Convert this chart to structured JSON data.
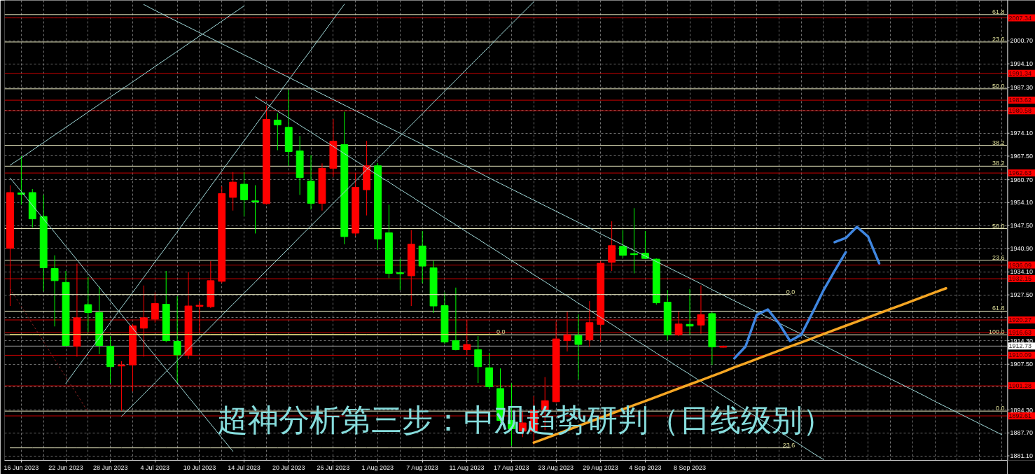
{
  "chart_data": {
    "type": "candlestick",
    "title": "超神分析第三步：中观趋势研判（日线级别）",
    "categories": [
      null,
      "16 Jun 2023",
      null,
      null,
      null,
      "22 Jun 2023",
      null,
      null,
      null,
      "28 Jun 2023",
      null,
      null,
      null,
      "4 Jul 2023",
      null,
      null,
      null,
      "10 Jul 2023",
      null,
      null,
      null,
      "14 Jul 2023",
      null,
      null,
      null,
      "20 Jul 2023",
      null,
      null,
      null,
      "26 Jul 2023",
      null,
      null,
      null,
      "1 Aug 2023",
      null,
      null,
      null,
      "7 Aug 2023",
      null,
      null,
      null,
      "11 Aug 2023",
      null,
      null,
      null,
      "17 Aug 2023",
      null,
      null,
      null,
      "23 Aug 2023",
      null,
      null,
      null,
      "29 Aug 2023",
      null,
      null,
      null,
      "4 Sep 2023",
      null,
      null,
      null,
      "8 Sep 2023",
      null,
      null,
      null,
      null,
      null,
      null,
      null,
      null,
      null,
      null,
      null,
      null,
      null,
      null,
      null,
      null,
      null,
      null,
      null,
      null,
      null,
      null,
      null,
      null,
      null,
      null,
      null,
      null
    ],
    "ohlc": [
      [
        1940.9,
        1959.1,
        1924.3,
        1957.0
      ],
      [
        1956.9,
        1967.5,
        1953.5,
        1956.5
      ],
      [
        1957.0,
        1958.0,
        1946.9,
        1949.4
      ],
      [
        1950.1,
        1956.3,
        1928.5,
        1935.3
      ],
      [
        1935.1,
        1938.9,
        1918.4,
        1931.6
      ],
      [
        1931.1,
        1934.4,
        1912.6,
        1912.9
      ],
      [
        1912.7,
        1936.5,
        1909.7,
        1920.9
      ],
      [
        1924.7,
        1932.7,
        1916.7,
        1922.4
      ],
      [
        1922.4,
        1929.9,
        1910.4,
        1912.9
      ],
      [
        1912.7,
        1915.6,
        1902.1,
        1906.8
      ],
      [
        1907.0,
        1908.4,
        1894.1,
        1907.3
      ],
      [
        1907.3,
        1919.1,
        1899.7,
        1918.6
      ],
      [
        1917.9,
        1930.2,
        1909.7,
        1920.9
      ],
      [
        1920.5,
        1928.2,
        1919.5,
        1925.0
      ],
      [
        1924.8,
        1934.4,
        1913.9,
        1914.3
      ],
      [
        1914.1,
        1927.1,
        1902.1,
        1910.2
      ],
      [
        1910.1,
        1934.1,
        1909.0,
        1924.3
      ],
      [
        1924.2,
        1925.7,
        1916.7,
        1924.5
      ],
      [
        1924.1,
        1937.2,
        1923.7,
        1931.6
      ],
      [
        1931.4,
        1958.8,
        1930.9,
        1956.7
      ],
      [
        1955.6,
        1962.9,
        1951.8,
        1960.0
      ],
      [
        1959.4,
        1962.9,
        1950.1,
        1954.9
      ],
      [
        1954.6,
        1959.1,
        1945.2,
        1954.3
      ],
      [
        1953.8,
        1982.0,
        1953.5,
        1978.1
      ],
      [
        1977.9,
        1979.9,
        1969.2,
        1976.5
      ],
      [
        1975.8,
        1986.6,
        1964.7,
        1968.8
      ],
      [
        1969.0,
        1973.3,
        1956.3,
        1961.3
      ],
      [
        1960.3,
        1967.8,
        1952.1,
        1953.9
      ],
      [
        1953.9,
        1965.4,
        1951.8,
        1964.0
      ],
      [
        1964.0,
        1978.2,
        1961.5,
        1971.8
      ],
      [
        1970.8,
        1980.3,
        1942.1,
        1944.3
      ],
      [
        1945.3,
        1962.6,
        1944.5,
        1958.5
      ],
      [
        1957.8,
        1971.9,
        1950.4,
        1964.7
      ],
      [
        1964.7,
        1965.5,
        1940.5,
        1943.6
      ],
      [
        1945.4,
        1953.5,
        1932.3,
        1933.7
      ],
      [
        1933.9,
        1937.9,
        1928.9,
        1933.6
      ],
      [
        1933.0,
        1946.2,
        1924.3,
        1942.1
      ],
      [
        1941.6,
        1945.9,
        1930.9,
        1935.8
      ],
      [
        1935.3,
        1937.3,
        1922.3,
        1924.3
      ],
      [
        1924.4,
        1928.2,
        1913.4,
        1913.9
      ],
      [
        1914.3,
        1929.6,
        1911.5,
        1911.7
      ],
      [
        1911.7,
        1920.2,
        1910.1,
        1913.2
      ],
      [
        1911.7,
        1915.6,
        1902.1,
        1906.8
      ],
      [
        1906.5,
        1910.8,
        1900.3,
        1901.0
      ],
      [
        1900.5,
        1906.3,
        1890.6,
        1891.3
      ],
      [
        1891.3,
        1902.0,
        1884.0,
        1888.9
      ],
      [
        1888.2,
        1893.8,
        1886.5,
        1890.6
      ],
      [
        1888.2,
        1898.3,
        1884.3,
        1894.2
      ],
      [
        1894.4,
        1903.8,
        1888.5,
        1897.0
      ],
      [
        1896.7,
        1919.8,
        1896.5,
        1914.8
      ],
      [
        1914.3,
        1922.6,
        1911.2,
        1916.0
      ],
      [
        1915.8,
        1921.9,
        1903.1,
        1913.2
      ],
      [
        1914.5,
        1925.7,
        1912.5,
        1919.5
      ],
      [
        1919.0,
        1937.3,
        1913.9,
        1936.6
      ],
      [
        1936.9,
        1948.7,
        1934.4,
        1941.7
      ],
      [
        1941.5,
        1946.2,
        1938.2,
        1938.9
      ],
      [
        1939.4,
        1952.5,
        1933.7,
        1939.1
      ],
      [
        1939.5,
        1945.9,
        1937.8,
        1938.0
      ],
      [
        1937.8,
        1938.0,
        1924.7,
        1925.2
      ],
      [
        1925.4,
        1928.9,
        1914.3,
        1916.0
      ],
      [
        1916.0,
        1922.6,
        1915.6,
        1919.1
      ],
      [
        1919.0,
        1929.2,
        1916.0,
        1918.5
      ],
      [
        1918.8,
        1930.2,
        1916.3,
        1921.8
      ],
      [
        1922.1,
        1922.6,
        1907.3,
        1912.5
      ],
      [
        1912.4,
        1912.9,
        1912.3,
        1912.7
      ],
      null,
      null,
      null,
      null,
      null,
      null,
      null,
      null,
      null,
      null,
      null,
      null,
      null,
      null,
      null,
      null,
      null,
      null,
      null,
      null,
      null,
      null,
      null,
      null,
      null
    ],
    "colors": [
      "#ff0000",
      "#00ff00",
      "#00ff00",
      "#00ff00",
      "#00ff00",
      "#00ff00",
      "#ff0000",
      "#00ff00",
      "#00ff00",
      "#00ff00",
      "#ff0000",
      "#ff0000",
      "#ff0000",
      "#ff0000",
      "#00ff00",
      "#00ff00",
      "#ff0000",
      "#ff0000",
      "#ff0000",
      "#ff0000",
      "#ff0000",
      "#00ff00",
      "#00ff00",
      "#ff0000",
      "#00ff00",
      "#00ff00",
      "#00ff00",
      "#00ff00",
      "#ff0000",
      "#ff0000",
      "#00ff00",
      "#ff0000",
      "#ff0000",
      "#00ff00",
      "#00ff00",
      "#00ff00",
      "#ff0000",
      "#00ff00",
      "#00ff00",
      "#00ff00",
      "#00ff00",
      "#ff0000",
      "#00ff00",
      "#00ff00",
      "#00ff00",
      "#00ff00",
      "#ff0000",
      "#ff0000",
      "#ff0000",
      "#ff0000",
      "#ff0000",
      "#00ff00",
      "#ff0000",
      "#ff0000",
      "#ff0000",
      "#00ff00",
      "#00ff00",
      "#00ff00",
      "#00ff00",
      "#00ff00",
      "#ff0000",
      "#00ff00",
      "#ff0000",
      "#00ff00",
      "#ff0000",
      null,
      null,
      null,
      null,
      null,
      null,
      null,
      null,
      null,
      null,
      null,
      null,
      null,
      null,
      null,
      null,
      null,
      null,
      null,
      null,
      null,
      null,
      null,
      null,
      null
    ],
    "series": [
      {
        "type": "line",
        "color": "#a0d8d8",
        "values": [
          1964.9,
          1967.0,
          1969.2,
          1971.4,
          1973.6,
          1975.8,
          1978.0,
          1980.2,
          1982.4,
          1984.6,
          1986.7,
          1988.9,
          1991.1,
          1993.3,
          1995.5,
          1997.7,
          1999.9,
          2002.1,
          2004.2,
          2006.4,
          2008.6,
          2010.8,
          null,
          null,
          null,
          null,
          null,
          null,
          null,
          null,
          null,
          null,
          null,
          null,
          null,
          null,
          null,
          null,
          null,
          null,
          null,
          null,
          null,
          null,
          null,
          null,
          null,
          null,
          null,
          null,
          null,
          null,
          null,
          null,
          null,
          null,
          null,
          null,
          null,
          null,
          null,
          null,
          null,
          null,
          null,
          null,
          null,
          null,
          null,
          null,
          null,
          null,
          null,
          null,
          null,
          null,
          null,
          null,
          null,
          null,
          null,
          null,
          null,
          null,
          null,
          null,
          null,
          null,
          null,
          null
        ]
      },
      {
        "type": "line",
        "color": "#a0d8d8",
        "values": [
          1961.2,
          1957.3,
          1953.3,
          1949.4,
          1945.5,
          1941.5,
          1937.6,
          1933.6,
          1929.7,
          1925.7,
          1921.8,
          1917.9,
          1913.9,
          1910.0,
          1906.0,
          1902.1,
          1898.1,
          1894.2,
          1890.3,
          1886.3,
          1882.4,
          null,
          null,
          null,
          null,
          null,
          null,
          null,
          null,
          null,
          null,
          null,
          null,
          null,
          null,
          null,
          null,
          null,
          null,
          null,
          null,
          null,
          null,
          null,
          null,
          null,
          null,
          null,
          null,
          null,
          null,
          null,
          null,
          null,
          null,
          null,
          null,
          null,
          null,
          null,
          null,
          null,
          null,
          null,
          null,
          null,
          null,
          null,
          null,
          null,
          null,
          null,
          null,
          null,
          null,
          null,
          null,
          null,
          null,
          null,
          null,
          null,
          null,
          null,
          null,
          null,
          null,
          null,
          null,
          null
        ]
      },
      {
        "type": "line",
        "color": "#a0d8d8",
        "values": [
          null,
          null,
          null,
          null,
          null,
          1902.0,
          1906.4,
          1910.7,
          1915.1,
          1919.5,
          1923.9,
          1928.2,
          1932.6,
          1937.0,
          1941.3,
          1945.7,
          1950.1,
          1954.4,
          1958.8,
          1963.2,
          1967.6,
          1971.9,
          1976.3,
          1980.7,
          1985.0,
          1989.4,
          1993.8,
          1998.1,
          2002.5,
          2006.9,
          2011.3,
          null,
          null,
          null,
          null,
          null,
          null,
          null,
          null,
          null,
          null,
          null,
          null,
          null,
          null,
          null,
          null,
          null,
          null,
          null,
          null,
          null,
          null,
          null,
          null,
          null,
          null,
          null,
          null,
          null,
          null,
          null,
          null,
          null,
          null,
          null,
          null,
          null,
          null,
          null,
          null,
          null,
          null,
          null,
          null,
          null,
          null,
          null,
          null,
          null,
          null,
          null,
          null,
          null,
          null,
          null,
          null,
          null,
          null,
          null
        ]
      },
      {
        "type": "line",
        "color": "#a0d8d8",
        "values": [
          null,
          null,
          null,
          null,
          null,
          null,
          null,
          null,
          null,
          null,
          1892.5,
          1895.7,
          1898.9,
          1902.2,
          1905.4,
          1908.6,
          1911.9,
          1915.1,
          1918.3,
          1921.6,
          1924.8,
          1928.0,
          1931.2,
          1934.5,
          1937.7,
          1940.9,
          1944.2,
          1947.4,
          1950.6,
          1953.9,
          1957.1,
          1960.3,
          1963.6,
          1966.8,
          1970.0,
          1973.3,
          1976.5,
          1979.7,
          1983.0,
          1986.2,
          1989.4,
          1992.7,
          1995.9,
          1999.1,
          2002.4,
          2005.6,
          2008.8,
          2012.0,
          null,
          null,
          null,
          null,
          null,
          null,
          null,
          null,
          null,
          null,
          null,
          null,
          null,
          null,
          null,
          null,
          null,
          null,
          null,
          null,
          null,
          null,
          null,
          null,
          null,
          null,
          null,
          null,
          null,
          null,
          null,
          null,
          null,
          null,
          null,
          null,
          null,
          null,
          null,
          null,
          null,
          null
        ]
      },
      {
        "type": "line",
        "color": "#a0d8d8",
        "values": [
          null,
          null,
          null,
          null,
          null,
          null,
          null,
          null,
          null,
          null,
          null,
          null,
          null,
          null,
          null,
          null,
          null,
          null,
          null,
          null,
          null,
          null,
          1984.6,
          1982.6,
          1980.5,
          1978.5,
          1976.4,
          1974.4,
          1972.3,
          1970.3,
          1968.2,
          1966.2,
          1964.1,
          1962.0,
          1960.0,
          1957.9,
          1955.9,
          1953.8,
          1951.8,
          1949.7,
          1947.7,
          1945.6,
          1943.6,
          1941.5,
          1939.5,
          1937.4,
          1935.4,
          1933.3,
          1931.3,
          1929.2,
          1927.2,
          1925.1,
          1923.1,
          1921.0,
          1919.0,
          1916.9,
          1914.8,
          1912.8,
          1910.7,
          1908.7,
          1906.6,
          1904.6,
          1902.5,
          1900.5,
          1898.4,
          1896.4,
          1894.3,
          1892.3,
          1890.2,
          1888.2,
          1886.1,
          1884.1,
          1882.0,
          1880.0,
          null,
          null,
          null,
          null,
          null,
          null,
          null,
          null,
          null,
          null,
          null,
          null,
          null,
          null,
          null,
          null
        ]
      },
      {
        "type": "line",
        "color": "#a0d8d8",
        "values": [
          null,
          null,
          null,
          null,
          null,
          null,
          null,
          null,
          null,
          null,
          null,
          null,
          2011.2,
          2009.5,
          2007.9,
          2006.3,
          2004.7,
          2003.1,
          2001.5,
          1999.9,
          1998.3,
          1996.7,
          1995.1,
          1993.4,
          1991.8,
          1990.2,
          1988.6,
          1987.0,
          1985.4,
          1983.8,
          1982.2,
          1980.6,
          1979.0,
          1977.3,
          1975.7,
          1974.1,
          1972.5,
          1970.9,
          1969.3,
          1967.7,
          1966.1,
          1964.5,
          1962.9,
          1961.2,
          1959.6,
          1958.0,
          1956.4,
          1954.8,
          1953.2,
          1951.6,
          1950.0,
          1948.4,
          1946.8,
          1945.1,
          1943.5,
          1941.9,
          1940.3,
          1938.7,
          1937.1,
          1935.5,
          1933.9,
          1932.3,
          1930.7,
          1929.0,
          1927.4,
          1925.8,
          1924.2,
          1922.6,
          1921.0,
          1919.4,
          1917.8,
          1916.2,
          1914.5,
          1912.9,
          1911.3,
          1909.7,
          1908.1,
          1906.5,
          1904.9,
          1903.3,
          1901.7,
          1900.1,
          1898.5,
          1896.8,
          1895.2,
          1893.6,
          1892.0,
          1890.4,
          1888.8,
          1887.2
        ]
      },
      {
        "type": "line",
        "color": "#8b2323",
        "line_style": "dotted",
        "values": [
          1929.3,
          1924.2,
          1919.1,
          1914.0,
          1908.9,
          1903.8,
          1898.8,
          1893.7,
          null,
          null,
          null,
          null,
          null,
          null,
          null,
          null,
          null,
          null,
          null,
          null,
          null,
          null,
          null,
          null,
          null,
          null,
          null,
          null,
          null,
          null,
          null,
          null,
          null,
          null,
          null,
          null,
          null,
          null,
          null,
          null,
          null,
          null,
          null,
          null,
          null,
          null,
          null,
          null,
          null,
          null,
          null,
          null,
          null,
          null,
          null,
          null,
          null,
          null,
          null,
          null,
          null,
          null,
          null,
          null,
          null,
          null,
          null,
          null,
          null,
          null,
          null,
          null,
          null,
          null,
          null,
          null,
          null,
          null,
          null,
          null,
          null,
          null,
          null,
          null,
          null,
          null,
          null,
          null,
          null,
          null
        ]
      },
      {
        "type": "line",
        "color": "#e6e070",
        "values": [
          1916.1,
          1916.1,
          1916.1,
          1916.1,
          1916.1,
          1916.1,
          1916.1,
          1916.1,
          1916.1,
          1916.1,
          1916.1,
          1916.1,
          1916.1,
          1916.1,
          1916.1,
          1916.1,
          1916.1,
          1916.1,
          1916.1,
          1916.1,
          1916.1,
          1916.1,
          1916.1,
          1916.1,
          1916.1,
          1916.1,
          1916.1,
          1916.1,
          1916.1,
          1916.1,
          1916.1,
          1916.1,
          1916.1,
          1916.1,
          1916.1,
          1916.1,
          1916.1,
          1916.1,
          1916.1,
          1916.1,
          1916.1,
          1916.1,
          1916.1,
          1916.1,
          1916.1,
          null,
          null,
          null,
          null,
          null,
          null,
          null,
          null,
          null,
          null,
          null,
          null,
          null,
          null,
          null,
          null,
          null,
          null,
          null,
          null,
          null,
          null,
          null,
          null,
          null,
          null,
          null,
          null,
          null,
          null,
          null,
          null,
          null,
          null,
          null,
          null,
          null,
          null,
          null,
          null,
          null,
          null,
          null,
          null,
          null
        ]
      },
      {
        "type": "line",
        "color": "#e8e8c0",
        "values": [
          1927.6,
          1927.6,
          1927.6,
          1927.6,
          1927.6,
          1927.6,
          1927.6,
          1927.6,
          1927.6,
          1927.6,
          1927.6,
          1927.6,
          1927.6,
          1927.6,
          1927.6,
          1927.6,
          1927.6,
          1927.6,
          1927.6,
          1927.6,
          1927.6,
          1927.6,
          1927.6,
          1927.6,
          1927.6,
          1927.6,
          1927.6,
          1927.6,
          1927.6,
          1927.6,
          1927.6,
          1927.6,
          1927.6,
          1927.6,
          1927.6,
          1927.6,
          1927.6,
          1927.6,
          1927.6,
          1927.6,
          1927.6,
          1927.6,
          1927.6,
          1927.6,
          1927.6,
          1927.6,
          1927.6,
          1927.6,
          1927.6,
          1927.6,
          1927.6,
          1927.6,
          1927.6,
          1927.6,
          1927.6,
          1927.6,
          1927.6,
          1927.6,
          1927.6,
          1927.6,
          1927.6,
          1927.6,
          1927.6,
          1927.6,
          1927.6,
          1927.6,
          1927.6,
          1927.6,
          1927.6,
          1927.6,
          1927.6,
          null,
          null,
          null,
          null,
          null,
          null,
          null,
          null,
          null,
          null,
          null,
          null,
          null,
          null,
          null,
          null,
          null,
          null,
          null
        ]
      },
      {
        "type": "line",
        "color": "#e8e8c0",
        "values": [
          1883.4,
          1883.4,
          1883.4,
          1883.4,
          1883.4,
          1883.4,
          1883.4,
          1883.4,
          1883.4,
          1883.4,
          1883.4,
          1883.4,
          1883.4,
          1883.4,
          1883.4,
          1883.4,
          1883.4,
          1883.4,
          1883.4,
          1883.4,
          1883.4,
          1883.4,
          1883.4,
          1883.4,
          1883.4,
          1883.4,
          1883.4,
          1883.4,
          1883.4,
          1883.4,
          1883.4,
          1883.4,
          1883.4,
          1883.4,
          1883.4,
          1883.4,
          1883.4,
          1883.4,
          1883.4,
          1883.4,
          1883.4,
          1883.4,
          1883.4,
          1883.4,
          1883.4,
          1883.4,
          1883.4,
          1883.4,
          1883.4,
          1883.4,
          1883.4,
          1883.4,
          1883.4,
          1883.4,
          1883.4,
          1883.4,
          1883.4,
          1883.4,
          1883.4,
          1883.4,
          1883.4,
          1883.4,
          1883.4,
          1883.4,
          1883.4,
          1883.4,
          1883.4,
          1883.4,
          1883.4,
          1883.4,
          1883.4,
          null,
          null,
          null,
          null,
          null,
          null,
          null,
          null,
          null,
          null,
          null,
          null,
          null,
          null,
          null,
          null,
          null,
          null,
          null
        ]
      },
      {
        "type": "line",
        "color": "#f5a623",
        "values": [
          null,
          null,
          null,
          null,
          null,
          null,
          null,
          null,
          null,
          null,
          null,
          null,
          null,
          null,
          null,
          null,
          null,
          null,
          null,
          null,
          null,
          null,
          null,
          null,
          null,
          null,
          null,
          null,
          null,
          null,
          null,
          null,
          null,
          null,
          null,
          null,
          null,
          null,
          null,
          null,
          null,
          null,
          null,
          null,
          null,
          null,
          null,
          1884.9,
          1886.1,
          1887.3,
          1888.5,
          1889.7,
          1890.9,
          1892.1,
          1893.3,
          1894.5,
          1895.7,
          1896.9,
          1898.1,
          1899.3,
          1900.5,
          1901.7,
          1902.9,
          1904.1,
          1905.3,
          1906.6,
          1907.8,
          1909.0,
          1910.2,
          1911.4,
          1912.6,
          1913.8,
          1915.0,
          1916.2,
          1917.4,
          1918.6,
          1919.8,
          1921.0,
          1922.2,
          1923.4,
          1924.6,
          1925.8,
          1927.0,
          1928.2,
          1929.4,
          null,
          null,
          null,
          null,
          null
        ]
      },
      {
        "type": "line",
        "color": "#3f86e0",
        "values": [
          null,
          null,
          null,
          null,
          null,
          null,
          null,
          null,
          null,
          null,
          null,
          null,
          null,
          null,
          null,
          null,
          null,
          null,
          null,
          null,
          null,
          null,
          null,
          null,
          null,
          null,
          null,
          null,
          null,
          null,
          null,
          null,
          null,
          null,
          null,
          null,
          null,
          null,
          null,
          null,
          null,
          null,
          null,
          null,
          null,
          null,
          null,
          null,
          null,
          null,
          null,
          null,
          null,
          null,
          null,
          null,
          null,
          null,
          null,
          null,
          null,
          null,
          null,
          null,
          null,
          1909.2,
          1912.6,
          1921.7,
          1923.3,
          1919.3,
          1914.2,
          1916.0,
          1922.3,
          1928.8,
          1934.4,
          1939.8,
          null,
          null,
          null,
          null,
          null,
          null,
          null,
          null,
          null,
          null,
          null,
          null,
          null,
          null
        ]
      },
      {
        "type": "line",
        "color": "#3f86e0",
        "values": [
          null,
          null,
          null,
          null,
          null,
          null,
          null,
          null,
          null,
          null,
          null,
          null,
          null,
          null,
          null,
          null,
          null,
          null,
          null,
          null,
          null,
          null,
          null,
          null,
          null,
          null,
          null,
          null,
          null,
          null,
          null,
          null,
          null,
          null,
          null,
          null,
          null,
          null,
          null,
          null,
          null,
          null,
          null,
          null,
          null,
          null,
          null,
          null,
          null,
          null,
          null,
          null,
          null,
          null,
          null,
          null,
          null,
          null,
          null,
          null,
          null,
          null,
          null,
          null,
          null,
          null,
          null,
          null,
          null,
          null,
          null,
          null,
          null,
          null,
          1942.7,
          1943.9,
          1947.1,
          1944.3,
          1936.6,
          null,
          null,
          null,
          null,
          null,
          null,
          null,
          null,
          null,
          null,
          null
        ]
      }
    ],
    "ylim": [
      1879.8,
      2012.4
    ],
    "yticks": [
      {
        "value": 2007.3,
        "label": null
      },
      {
        "value": 2000.7,
        "label": "2000.70"
      },
      {
        "value": 1994.1,
        "label": "1994.10"
      },
      {
        "value": 1987.3,
        "label": "1987.30"
      },
      {
        "value": 1980.7,
        "label": null
      },
      {
        "value": 1974.1,
        "label": "1974.10"
      },
      {
        "value": 1967.5,
        "label": "1967.50"
      },
      {
        "value": 1960.7,
        "label": "1960.70"
      },
      {
        "value": 1954.1,
        "label": "1954.10"
      },
      {
        "value": 1947.5,
        "label": "1947.50"
      },
      {
        "value": 1940.9,
        "label": "1940.90"
      },
      {
        "value": 1934.1,
        "label": "1934.10"
      },
      {
        "value": 1927.5,
        "label": "1927.50"
      },
      {
        "value": 1920.9,
        "label": null
      },
      {
        "value": 1914.3,
        "label": "1914.30"
      },
      {
        "value": 1907.5,
        "label": "1907.50"
      },
      {
        "value": 1900.9,
        "label": null
      },
      {
        "value": 1894.3,
        "label": "1894.30"
      },
      {
        "value": 1887.7,
        "label": "1887.70"
      },
      {
        "value": 1881.1,
        "label": "1881.10"
      }
    ],
    "grid": true,
    "ref_lines": [
      {
        "axis": "y",
        "value": 2007.34,
        "label": "2007.34",
        "color": "#cc0000"
      },
      {
        "axis": "y",
        "value": 1991.34,
        "label": "1991.34",
        "color": "#cc0000"
      },
      {
        "axis": "y",
        "value": 1983.62,
        "label": "1983.62",
        "color": "#cc0000"
      },
      {
        "axis": "y",
        "value": 1980.58,
        "label": "1980.58",
        "color": "#cc0000"
      },
      {
        "axis": "y",
        "value": 1962.63,
        "label": "1962.63",
        "color": "#cc0000"
      },
      {
        "axis": "y",
        "value": 1936.09,
        "label": "1936.09",
        "color": "#cc0000"
      },
      {
        "axis": "y",
        "value": 1932.15,
        "label": "1932.15",
        "color": "#cc0000"
      },
      {
        "axis": "y",
        "value": 1920.27,
        "label": "1920.27",
        "color": "#cc0000"
      },
      {
        "axis": "y",
        "value": 1916.63,
        "label": "1916.63",
        "color": "#cc0000"
      },
      {
        "axis": "y",
        "value": 1910.09,
        "label": "1910.09",
        "color": "#cc0000"
      },
      {
        "axis": "y",
        "value": 1901.28,
        "label": "1901.28",
        "color": "#cc0000"
      },
      {
        "axis": "y",
        "value": 1892.61,
        "label": "1892.61",
        "color": "#cc0000"
      },
      {
        "axis": "y",
        "value": 1912.73,
        "label": "1912.73",
        "color": "#a0a0a0"
      },
      {
        "axis": "y",
        "value": 2008.3,
        "color": "#e8e8c0"
      },
      {
        "axis": "y",
        "value": 2000.4,
        "color": "#e8e8c0"
      },
      {
        "axis": "y",
        "value": 1986.9,
        "color": "#e8e8c0"
      },
      {
        "axis": "y",
        "value": 1970.6,
        "color": "#e8e8c0"
      },
      {
        "axis": "y",
        "value": 1964.6,
        "color": "#e8e8c0"
      },
      {
        "axis": "y",
        "value": 1946.6,
        "color": "#e8e8c0"
      },
      {
        "axis": "y",
        "value": 1937.5,
        "color": "#e8e8c0"
      },
      {
        "axis": "y",
        "value": 1922.8,
        "color": "#e8e8c0"
      },
      {
        "axis": "y",
        "value": 1916.0,
        "color": "#e8e8c0"
      },
      {
        "axis": "y",
        "value": 1894.0,
        "color": "#e8e8c0"
      }
    ],
    "annotations": [
      {
        "text": "61.8",
        "y": 2008.3
      },
      {
        "text": "23.6",
        "y": 2000.4
      },
      {
        "text": "50.0",
        "y": 1986.9
      },
      {
        "text": "38.2",
        "y": 1970.6
      },
      {
        "text": "38.2",
        "y": 1964.6
      },
      {
        "text": "50.0",
        "y": 1946.6
      },
      {
        "text": "23.6",
        "y": 1937.5
      },
      {
        "text": "61.8",
        "y": 1922.8
      },
      {
        "text": "100.0",
        "y": 1916.0
      },
      {
        "text": "0.0",
        "y": 1894.0
      },
      {
        "text": "0.0",
        "y": 1916.1
      },
      {
        "text": "0.0",
        "y": 1927.6
      },
      {
        "text": "23.6",
        "y": 1883.4
      }
    ]
  }
}
